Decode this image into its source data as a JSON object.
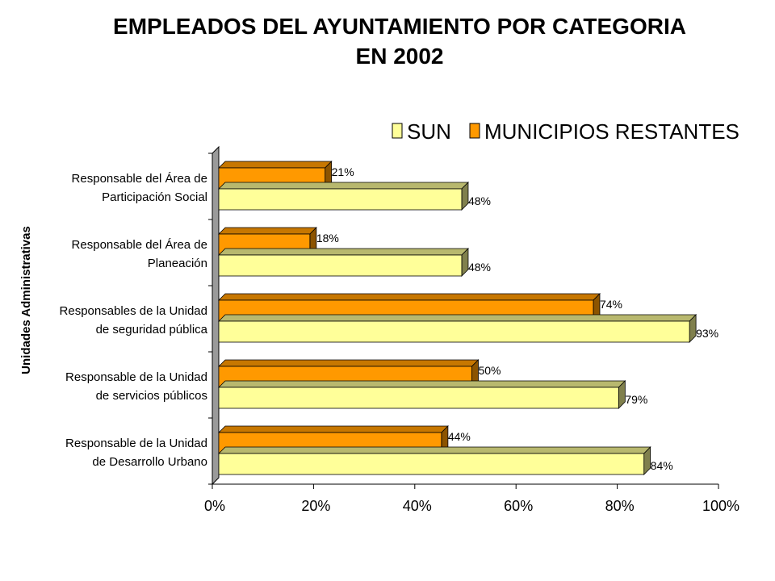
{
  "chart_data": {
    "type": "bar",
    "orientation": "horizontal",
    "title": "EMPLEADOS DEL AYUNTAMIENTO POR CATEGORIA",
    "title_line2": "EN 2002",
    "ylabel": "Unidades Administrativas",
    "xlim": [
      0,
      100
    ],
    "xticks": [
      "0%",
      "20%",
      "40%",
      "60%",
      "80%",
      "100%"
    ],
    "legend_position": "top-right",
    "categories": [
      [
        "Responsable del Área de",
        "Participación Social"
      ],
      [
        "Responsable del Área de",
        "Planeación"
      ],
      [
        "Responsables de la Unidad",
        "de seguridad pública"
      ],
      [
        "Responsable de la Unidad",
        "de servicios públicos"
      ],
      [
        "Responsable de la Unidad",
        "de Desarrollo Urbano"
      ]
    ],
    "series": [
      {
        "name": "SUN",
        "values": [
          48,
          48,
          93,
          79,
          84
        ],
        "labels": [
          "48%",
          "48%",
          "93%",
          "79%",
          "84%"
        ],
        "color": "#FFFF99"
      },
      {
        "name": "MUNICIPIOS RESTANTES",
        "values": [
          21,
          18,
          74,
          50,
          44
        ],
        "labels": [
          "21%",
          "18%",
          "74%",
          "50%",
          "44%"
        ],
        "color": "#FF9900"
      }
    ],
    "grid": false,
    "style": "3d"
  }
}
